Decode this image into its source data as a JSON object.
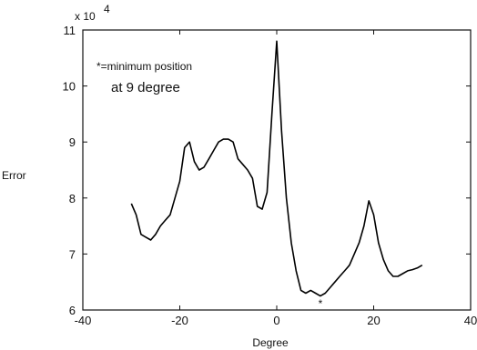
{
  "chart_data": {
    "type": "line",
    "xlabel": "Degree",
    "ylabel": "Error",
    "scale_label": "x 10",
    "scale_exponent": "4",
    "xlim": [
      -40,
      40
    ],
    "ylim": [
      6,
      11
    ],
    "xticks": [
      "-40",
      "-20",
      "0",
      "20",
      "40"
    ],
    "yticks": [
      "6",
      "7",
      "8",
      "9",
      "10",
      "11"
    ],
    "annotation_line1": "*=minimum position",
    "annotation_line2": "at 9 degree",
    "marker": "*",
    "marker_point": [
      9,
      6.15
    ],
    "grid": false,
    "series": [
      {
        "x": [
          -30,
          -29,
          -28,
          -27,
          -26,
          -25,
          -24,
          -23,
          -22,
          -21,
          -20,
          -19,
          -18,
          -17,
          -16,
          -15,
          -14,
          -13,
          -12,
          -11,
          -10,
          -9,
          -8,
          -7,
          -6,
          -5,
          -4,
          -3,
          -2,
          -1,
          0,
          1,
          2,
          3,
          4,
          5,
          6,
          7,
          8,
          9,
          10,
          11,
          12,
          13,
          14,
          15,
          16,
          17,
          18,
          19,
          20,
          21,
          22,
          23,
          24,
          25,
          26,
          27,
          28,
          29,
          30
        ],
        "y": [
          7.9,
          7.7,
          7.35,
          7.3,
          7.25,
          7.35,
          7.5,
          7.6,
          7.7,
          8.0,
          8.3,
          8.9,
          9.0,
          8.65,
          8.5,
          8.55,
          8.7,
          8.85,
          9.0,
          9.05,
          9.05,
          9.0,
          8.7,
          8.6,
          8.5,
          8.35,
          7.85,
          7.8,
          8.1,
          9.5,
          10.8,
          9.2,
          8.0,
          7.2,
          6.7,
          6.35,
          6.3,
          6.35,
          6.3,
          6.25,
          6.3,
          6.4,
          6.5,
          6.6,
          6.7,
          6.8,
          7.0,
          7.2,
          7.5,
          7.95,
          7.7,
          7.2,
          6.9,
          6.7,
          6.6,
          6.6,
          6.65,
          6.7,
          6.72,
          6.75,
          6.8
        ]
      }
    ]
  }
}
